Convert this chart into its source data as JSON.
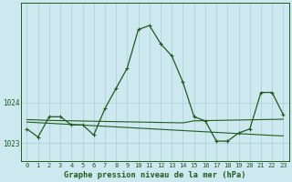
{
  "title": "Graphe pression niveau de la mer (hPa)",
  "background_color": "#cde8ee",
  "grid_color": "#aacdd5",
  "line_color": "#1e5c1e",
  "hours": [
    0,
    1,
    2,
    3,
    4,
    5,
    6,
    7,
    8,
    9,
    10,
    11,
    12,
    13,
    14,
    15,
    16,
    17,
    18,
    19,
    20,
    21,
    22,
    23
  ],
  "series_main": [
    1023.35,
    1023.15,
    1023.65,
    1023.65,
    1023.45,
    1023.45,
    1023.2,
    1023.85,
    1024.35,
    1024.85,
    1025.8,
    1025.9,
    1025.45,
    1025.15,
    1024.5,
    1023.65,
    1023.55,
    1023.05,
    1023.05,
    1023.25,
    1023.35,
    1024.25,
    1024.25,
    1023.7
  ],
  "trend1": [
    1023.58,
    1023.57,
    1023.56,
    1023.555,
    1023.55,
    1023.545,
    1023.54,
    1023.535,
    1023.53,
    1023.525,
    1023.52,
    1023.515,
    1023.51,
    1023.505,
    1023.5,
    1023.55,
    1023.555,
    1023.56,
    1023.565,
    1023.57,
    1023.575,
    1023.58,
    1023.585,
    1023.59
  ],
  "trend2": [
    1023.52,
    1023.505,
    1023.49,
    1023.475,
    1023.46,
    1023.445,
    1023.43,
    1023.415,
    1023.4,
    1023.385,
    1023.37,
    1023.355,
    1023.34,
    1023.325,
    1023.31,
    1023.295,
    1023.28,
    1023.265,
    1023.25,
    1023.235,
    1023.22,
    1023.205,
    1023.19,
    1023.18
  ],
  "ylim_min": 1022.55,
  "ylim_max": 1026.45,
  "yticks": [
    1023,
    1024
  ],
  "tick_fontsize": 5.0,
  "title_fontsize": 6.2
}
